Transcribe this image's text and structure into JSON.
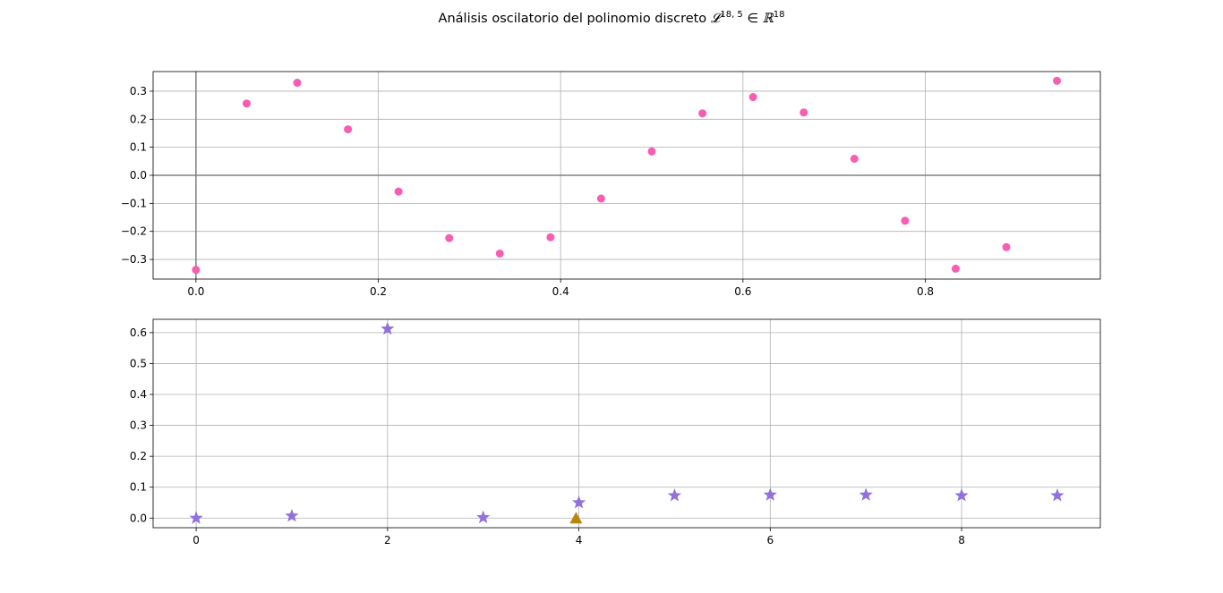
{
  "title": {
    "prefix": "Análisis oscilatorio del polinomio discreto ",
    "L_symbol": "𝓛",
    "L_sup": "18, 5",
    "in_symbol": "∈",
    "R_symbol": "ℝ",
    "R_sup": "18"
  },
  "colors": {
    "top_points": "#f85db2",
    "stars": "#9370db",
    "triangle": "#b8860b",
    "grid": "#b0b0b0",
    "zero_lines": "#808080"
  },
  "chart_data": [
    {
      "type": "scatter",
      "title": "",
      "xlabel": "",
      "ylabel": "",
      "xlim": [
        -0.047,
        0.992
      ],
      "ylim": [
        -0.37,
        0.37
      ],
      "grid": true,
      "xticks": [
        0.0,
        0.2,
        0.4,
        0.6,
        0.8
      ],
      "xtick_labels": [
        "0.0",
        "0.2",
        "0.4",
        "0.6",
        "0.8"
      ],
      "yticks": [
        -0.3,
        -0.2,
        -0.1,
        0.0,
        0.1,
        0.2,
        0.3
      ],
      "ytick_labels": [
        "−0.3",
        "−0.2",
        "−0.1",
        "0.0",
        "0.1",
        "0.2",
        "0.3"
      ],
      "reference_lines": {
        "x": 0,
        "y": 0
      },
      "series": [
        {
          "marker": "circle",
          "x": [
            0.0,
            0.0556,
            0.1111,
            0.1667,
            0.2222,
            0.2778,
            0.3333,
            0.3889,
            0.4444,
            0.5,
            0.5556,
            0.6111,
            0.6667,
            0.7222,
            0.7778,
            0.8333,
            0.8889,
            0.9444
          ],
          "y": [
            -0.337,
            0.256,
            0.33,
            0.164,
            -0.058,
            -0.224,
            -0.279,
            -0.221,
            -0.083,
            0.085,
            0.221,
            0.279,
            0.224,
            0.059,
            -0.162,
            -0.333,
            -0.256,
            0.337
          ]
        }
      ]
    },
    {
      "type": "scatter",
      "title": "",
      "xlabel": "",
      "ylabel": "",
      "xlim": [
        -0.45,
        9.45
      ],
      "ylim": [
        -0.031,
        0.643
      ],
      "grid": true,
      "xticks": [
        0,
        2,
        4,
        6,
        8
      ],
      "xtick_labels": [
        "0",
        "2",
        "4",
        "6",
        "8"
      ],
      "yticks": [
        0.0,
        0.1,
        0.2,
        0.3,
        0.4,
        0.5,
        0.6
      ],
      "ytick_labels": [
        "0.0",
        "0.1",
        "0.2",
        "0.3",
        "0.4",
        "0.5",
        "0.6"
      ],
      "series": [
        {
          "marker": "star",
          "x": [
            0,
            1,
            2,
            3,
            4,
            5,
            6,
            7,
            8,
            9
          ],
          "y": [
            0.0,
            0.007,
            0.612,
            0.002,
            0.05,
            0.073,
            0.075,
            0.075,
            0.073,
            0.073
          ]
        },
        {
          "marker": "triangle",
          "x": [
            3.97
          ],
          "y": [
            0.0
          ]
        }
      ]
    }
  ]
}
